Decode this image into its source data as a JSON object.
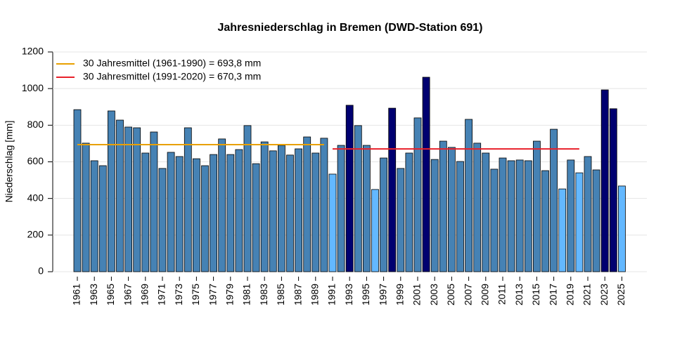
{
  "chart_data": {
    "type": "bar",
    "title": "Jahresniederschlag in Bremen (DWD-Station 691)",
    "y_label": "Niederschlag [mm]",
    "categories": [
      "1961",
      null,
      "1963",
      null,
      "1965",
      null,
      "1967",
      null,
      "1969",
      null,
      "1971",
      null,
      "1973",
      null,
      "1975",
      null,
      "1977",
      null,
      "1979",
      null,
      "1981",
      null,
      "1983",
      null,
      "1985",
      null,
      "1987",
      null,
      "1989",
      null,
      "1991",
      null,
      "1993",
      null,
      "1995",
      null,
      "1997",
      null,
      "1999",
      null,
      "2001",
      null,
      "2003",
      null,
      "2005",
      null,
      "2007",
      null,
      "2009",
      null,
      "2011",
      null,
      "2013",
      null,
      "2015",
      null,
      "2017",
      null,
      "2019",
      null,
      "2021",
      null,
      "2023",
      null,
      "2025"
    ],
    "values": [
      885,
      702,
      606,
      579,
      878,
      828,
      790,
      786,
      648,
      763,
      564,
      652,
      629,
      786,
      617,
      579,
      640,
      725,
      640,
      667,
      798,
      590,
      709,
      660,
      690,
      637,
      671,
      736,
      648,
      729,
      533,
      690,
      909,
      798,
      690,
      449,
      621,
      893,
      564,
      648,
      840,
      1062,
      613,
      713,
      679,
      602,
      832,
      702,
      648,
      560,
      621,
      606,
      610,
      606,
      713,
      552,
      778,
      452,
      610,
      540,
      629,
      556,
      993,
      890,
      468
    ],
    "colors": [
      "#4682b4",
      "#4682b4",
      "#4682b4",
      "#4682b4",
      "#4682b4",
      "#4682b4",
      "#4682b4",
      "#4682b4",
      "#4682b4",
      "#4682b4",
      "#4682b4",
      "#4682b4",
      "#4682b4",
      "#4682b4",
      "#4682b4",
      "#4682b4",
      "#4682b4",
      "#4682b4",
      "#4682b4",
      "#4682b4",
      "#4682b4",
      "#4682b4",
      "#4682b4",
      "#4682b4",
      "#4682b4",
      "#4682b4",
      "#4682b4",
      "#4682b4",
      "#4682b4",
      "#4682b4",
      "#63b8ff",
      "#4682b4",
      "#000070",
      "#4682b4",
      "#4682b4",
      "#63b8ff",
      "#4682b4",
      "#000070",
      "#4682b4",
      "#4682b4",
      "#4682b4",
      "#000070",
      "#4682b4",
      "#4682b4",
      "#4682b4",
      "#4682b4",
      "#4682b4",
      "#4682b4",
      "#4682b4",
      "#4682b4",
      "#4682b4",
      "#4682b4",
      "#4682b4",
      "#4682b4",
      "#4682b4",
      "#4682b4",
      "#4682b4",
      "#63b8ff",
      "#4682b4",
      "#63b8ff",
      "#4682b4",
      "#4682b4",
      "#000070",
      "#000070",
      "#63b8ff"
    ],
    "reference_lines": [
      {
        "name": "30 Jahresmittel (1961-1990) = 693,8 mm",
        "value": 693.8,
        "span": [
          1961,
          1990
        ],
        "color": "#e8a000"
      },
      {
        "name": "30 Jahresmittel (1991-2020) = 670,3 mm",
        "value": 670.3,
        "span": [
          1991,
          2020
        ],
        "color": "#e8202a"
      }
    ],
    "ylim": [
      0,
      1200
    ],
    "yticks": [
      0,
      200,
      400,
      600,
      800,
      1000,
      1200
    ],
    "grid": true,
    "legend": "top-left"
  }
}
